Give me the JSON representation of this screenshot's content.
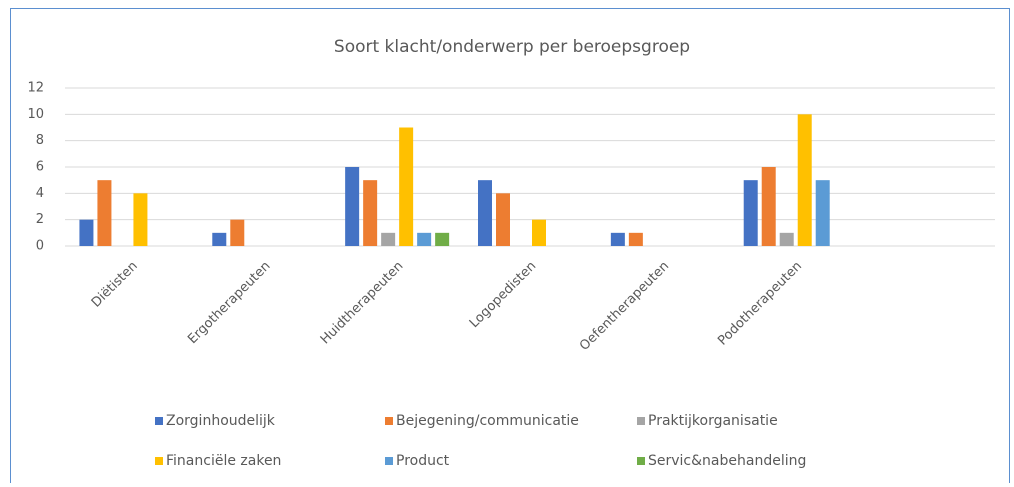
{
  "chart_data": {
    "type": "bar",
    "title": "Soort klacht/onderwerp  per beroepsgroep",
    "categories": [
      "Diëtisten",
      "Ergotherapeuten",
      "Huidtherapeuten",
      "Logopedisten",
      "Oefentherapeuten",
      "Podotherapeuten",
      null
    ],
    "series": [
      {
        "name": "Zorginhoudelijk",
        "color": "#4472c4",
        "values": [
          2,
          1,
          6,
          5,
          1,
          5,
          null
        ]
      },
      {
        "name": "Bejegening/communicatie",
        "color": "#ed7d31",
        "values": [
          5,
          2,
          5,
          4,
          1,
          6,
          null
        ]
      },
      {
        "name": "Praktijkorganisatie",
        "color": "#a5a5a5",
        "values": [
          0,
          0,
          1,
          0,
          0,
          1,
          null
        ]
      },
      {
        "name": "Financiële zaken",
        "color": "#ffc000",
        "values": [
          4,
          0,
          9,
          2,
          0,
          10,
          null
        ]
      },
      {
        "name": "Product",
        "color": "#5b9bd5",
        "values": [
          0,
          0,
          1,
          0,
          0,
          5,
          null
        ]
      },
      {
        "name": "Servic&nabehandeling",
        "color": "#70ad47",
        "values": [
          0,
          0,
          1,
          0,
          0,
          0,
          null
        ]
      }
    ],
    "ylim": [
      0,
      12
    ],
    "yticks": [
      0,
      2,
      4,
      6,
      8,
      10,
      12
    ],
    "grid": true,
    "legend": "bottom"
  }
}
